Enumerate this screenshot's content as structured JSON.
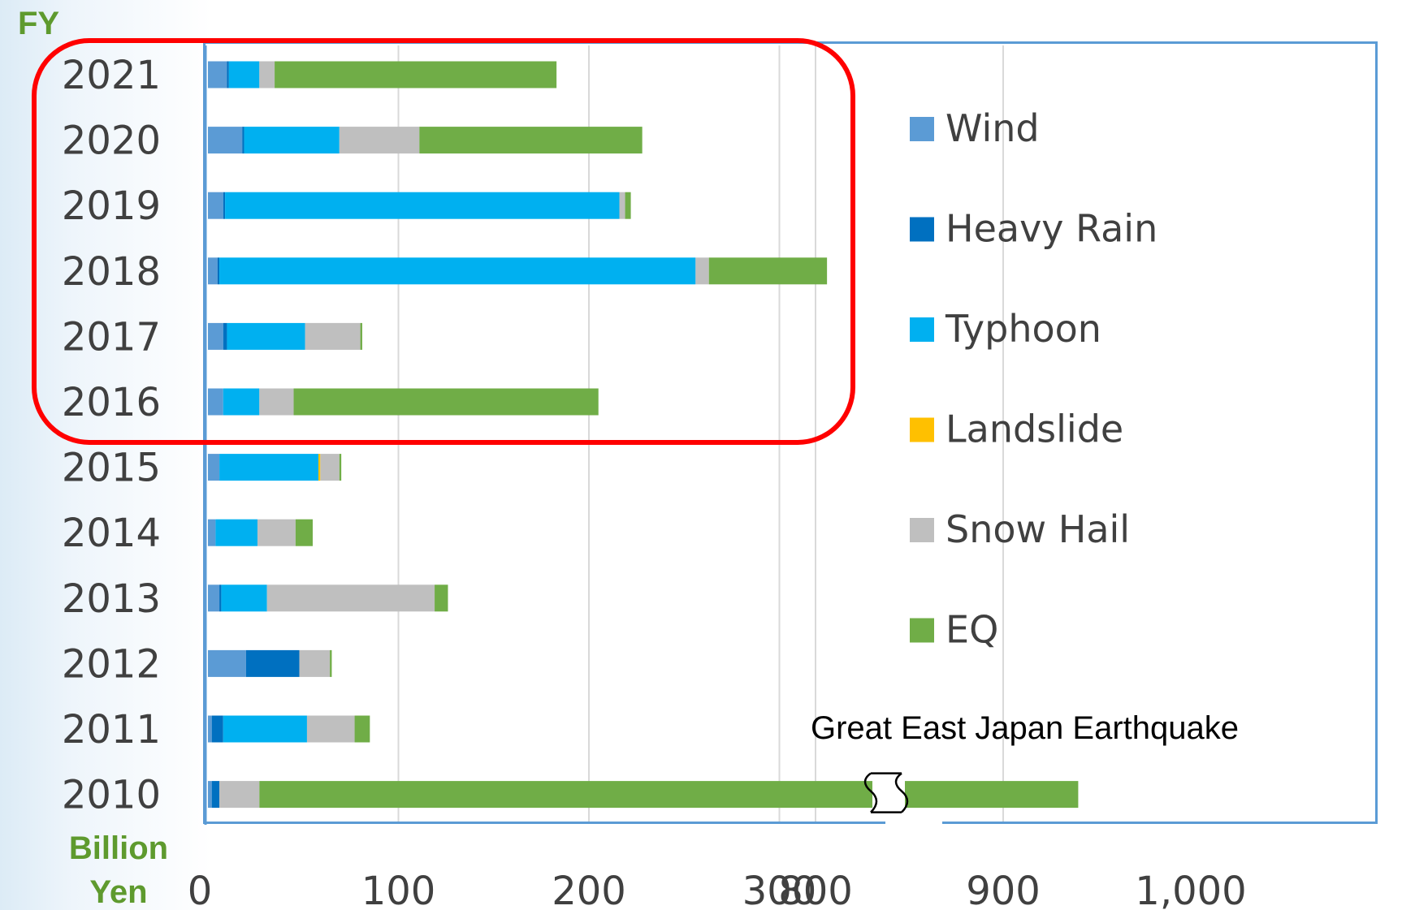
{
  "chart_data": {
    "type": "bar",
    "orientation": "horizontal",
    "stacked": true,
    "y_axis_title": "FY",
    "x_axis_title": "Billion Yen",
    "categories": [
      "2021",
      "2020",
      "2019",
      "2018",
      "2017",
      "2016",
      "2015",
      "2014",
      "2013",
      "2012",
      "2011",
      "2010"
    ],
    "series": [
      {
        "name": "Wind",
        "color": "#5b9bd5",
        "values": [
          10,
          18,
          8,
          5,
          8,
          8,
          6,
          4,
          6,
          20,
          2,
          2
        ]
      },
      {
        "name": "Heavy Rain",
        "color": "#0070c0",
        "values": [
          1,
          1,
          1,
          1,
          2,
          0,
          0,
          0,
          1,
          28,
          6,
          4
        ]
      },
      {
        "name": "Typhoon",
        "color": "#00b0f0",
        "values": [
          16,
          50,
          207,
          250,
          41,
          19,
          52,
          22,
          24,
          0,
          44,
          0
        ]
      },
      {
        "name": "Landslide",
        "color": "#ffc000",
        "values": [
          0,
          0,
          0,
          0,
          0,
          0,
          1,
          0,
          0,
          0,
          0,
          0
        ]
      },
      {
        "name": "Snow Hail",
        "color": "#bfbfbf",
        "values": [
          8,
          42,
          3,
          7,
          29,
          18,
          10,
          20,
          88,
          16,
          25,
          21
        ]
      },
      {
        "name": "EQ",
        "color": "#70ad47",
        "values": [
          148,
          117,
          3,
          62,
          1,
          160,
          1,
          9,
          7,
          1,
          8,
          913
        ]
      }
    ],
    "x_ticks": [
      "0",
      "100",
      "200",
      "300",
      "800",
      "900",
      "1,000"
    ],
    "axis_break": {
      "from": 350,
      "to": 750
    },
    "xlim": [
      0,
      1000
    ],
    "gridlines": "vertical",
    "legend_position": "right",
    "annotation": "Great East Japan Earthquake",
    "highlight": {
      "color": "#ff0000",
      "categories": [
        "2021",
        "2020",
        "2019",
        "2018",
        "2017",
        "2016"
      ]
    }
  }
}
